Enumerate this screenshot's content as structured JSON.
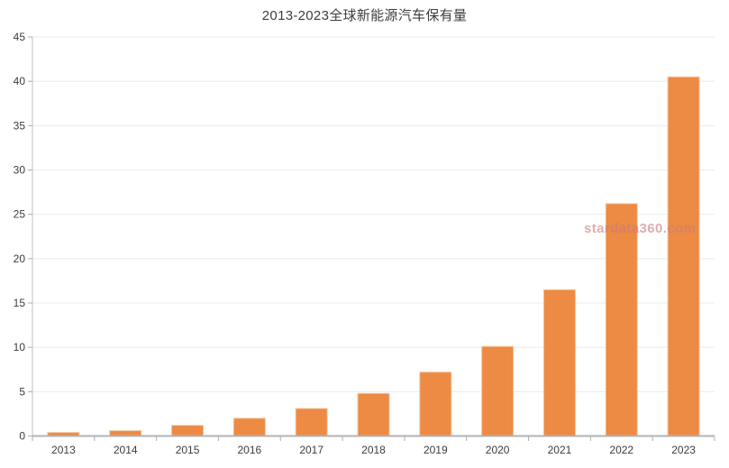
{
  "watermark": {
    "text": "stardata360.com"
  },
  "colors": {
    "bar": "#ED8A44",
    "bar_border": "#F3C79C",
    "grid": "#EBEBEB",
    "axis": "#B3B3B3",
    "axis_y": "#C2C2C2",
    "tick": "#ADADAD",
    "tick_text": "#3C3C3C",
    "title_text": "#3D3D3D",
    "background": "#FFFFFF"
  },
  "chart_data": {
    "type": "bar",
    "title": "2013-2023全球新能源汽车保有量",
    "categories": [
      "2013",
      "2014",
      "2015",
      "2016",
      "2017",
      "2018",
      "2019",
      "2020",
      "2021",
      "2022",
      "2023"
    ],
    "values": [
      0.4,
      0.6,
      1.2,
      2.0,
      3.1,
      4.8,
      7.2,
      10.1,
      16.5,
      26.2,
      40.5
    ],
    "xlabel": "",
    "ylabel": "",
    "ylim": [
      0,
      45
    ],
    "ytick_step": 5,
    "yticks": [
      0,
      5,
      10,
      15,
      20,
      25,
      30,
      35,
      40,
      45
    ],
    "grid": true,
    "legend_position": "none",
    "annotations": [
      "stardata360.com"
    ]
  }
}
